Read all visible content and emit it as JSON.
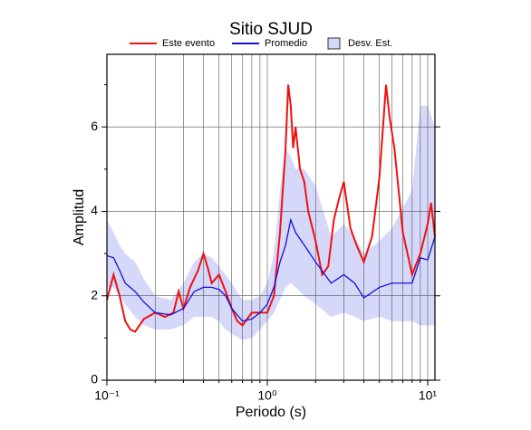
{
  "chart_data": {
    "type": "line",
    "title": "Sitio SJUD",
    "xlabel": "Periodo (s)",
    "ylabel": "Amplitud",
    "xscale": "log",
    "grid": true,
    "xlim": [
      0.1,
      11.1
    ],
    "ylim": [
      0,
      7.72
    ],
    "xticks": [
      {
        "value": 0.1,
        "label": "10⁻¹"
      },
      {
        "value": 1,
        "label": "10⁰"
      },
      {
        "value": 10,
        "label": "10¹"
      }
    ],
    "xminor": [
      0.2,
      0.3,
      0.4,
      0.5,
      0.6,
      0.7,
      0.8,
      0.9,
      2,
      3,
      4,
      5,
      6,
      7,
      8,
      9
    ],
    "yticks": [
      0,
      2,
      4,
      6
    ],
    "yminor": [
      1,
      3,
      5,
      7
    ],
    "series": [
      {
        "name": "Este evento",
        "color": "#ee1111",
        "x": [
          0.1,
          0.11,
          0.12,
          0.13,
          0.14,
          0.15,
          0.17,
          0.2,
          0.23,
          0.26,
          0.28,
          0.3,
          0.33,
          0.37,
          0.4,
          0.43,
          0.45,
          0.5,
          0.55,
          0.6,
          0.65,
          0.7,
          0.8,
          0.9,
          1.0,
          1.1,
          1.2,
          1.3,
          1.35,
          1.4,
          1.45,
          1.5,
          1.6,
          1.7,
          1.8,
          2.0,
          2.2,
          2.4,
          2.6,
          2.8,
          3.0,
          3.3,
          3.6,
          4.0,
          4.5,
          5.0,
          5.5,
          5.8,
          6.2,
          7.0,
          8.0,
          9.0,
          10.0,
          10.5,
          11.1
        ],
        "values": [
          1.9,
          2.5,
          2.0,
          1.4,
          1.2,
          1.15,
          1.45,
          1.6,
          1.5,
          1.6,
          2.1,
          1.7,
          2.2,
          2.6,
          3.0,
          2.6,
          2.3,
          2.5,
          2.1,
          1.7,
          1.4,
          1.3,
          1.6,
          1.6,
          1.6,
          2.0,
          3.5,
          5.5,
          7.0,
          6.5,
          5.5,
          6.0,
          5.0,
          4.7,
          4.0,
          3.3,
          2.5,
          2.7,
          3.8,
          4.3,
          4.7,
          3.6,
          3.2,
          2.8,
          3.4,
          4.8,
          7.0,
          6.2,
          5.5,
          3.5,
          2.5,
          3.0,
          3.7,
          4.2,
          3.4
        ]
      },
      {
        "name": "Promedio",
        "color": "#1111dd",
        "x": [
          0.1,
          0.11,
          0.12,
          0.13,
          0.15,
          0.17,
          0.2,
          0.25,
          0.3,
          0.35,
          0.4,
          0.45,
          0.5,
          0.55,
          0.6,
          0.7,
          0.8,
          0.9,
          1.0,
          1.1,
          1.2,
          1.3,
          1.4,
          1.5,
          1.7,
          2.0,
          2.5,
          3.0,
          3.5,
          4.0,
          5.0,
          6.0,
          8.0,
          9.0,
          10.0,
          11.1
        ],
        "values": [
          2.95,
          2.9,
          2.6,
          2.3,
          2.1,
          1.85,
          1.6,
          1.55,
          1.7,
          2.1,
          2.2,
          2.2,
          2.15,
          2.0,
          1.7,
          1.4,
          1.45,
          1.6,
          1.8,
          2.2,
          2.8,
          3.2,
          3.8,
          3.5,
          3.2,
          2.8,
          2.3,
          2.5,
          2.3,
          1.95,
          2.2,
          2.3,
          2.3,
          2.9,
          2.85,
          3.4
        ]
      },
      {
        "name": "Desv. Est.",
        "color": "#d6d8fa",
        "type": "band",
        "x": [
          0.1,
          0.11,
          0.12,
          0.13,
          0.15,
          0.17,
          0.2,
          0.25,
          0.3,
          0.35,
          0.4,
          0.45,
          0.5,
          0.55,
          0.6,
          0.7,
          0.8,
          0.9,
          1.0,
          1.1,
          1.2,
          1.3,
          1.4,
          1.5,
          1.7,
          2.0,
          2.5,
          3.0,
          3.5,
          4.0,
          5.0,
          6.0,
          8.0,
          9.0,
          10.0,
          11.1
        ],
        "upper": [
          3.8,
          3.5,
          3.2,
          3.0,
          2.8,
          2.4,
          2.0,
          1.9,
          2.3,
          2.8,
          3.0,
          2.9,
          2.7,
          2.5,
          2.3,
          1.9,
          1.9,
          2.0,
          2.3,
          3.0,
          4.5,
          5.5,
          5.3,
          5.0,
          5.0,
          4.6,
          3.4,
          3.7,
          3.4,
          3.0,
          3.3,
          3.6,
          4.5,
          6.5,
          6.5,
          6.0
        ],
        "lower": [
          2.2,
          2.2,
          2.0,
          1.8,
          1.5,
          1.3,
          1.2,
          1.2,
          1.3,
          1.5,
          1.5,
          1.5,
          1.4,
          1.2,
          1.1,
          0.95,
          1.0,
          1.2,
          1.4,
          1.6,
          1.9,
          2.2,
          2.3,
          2.2,
          2.0,
          1.8,
          1.5,
          1.6,
          1.5,
          1.4,
          1.5,
          1.4,
          1.4,
          1.3,
          1.3,
          1.3
        ]
      }
    ]
  }
}
